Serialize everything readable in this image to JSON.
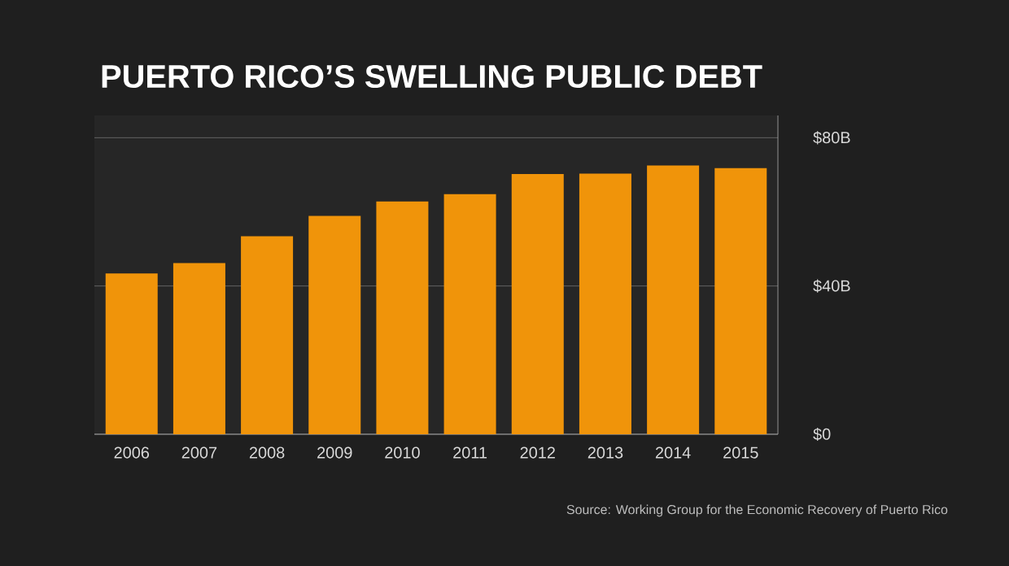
{
  "chart_data": {
    "type": "bar",
    "title": "PUERTO RICO’S SWELLING PUBLIC DEBT",
    "categories": [
      "2006",
      "2007",
      "2008",
      "2009",
      "2010",
      "2011",
      "2012",
      "2013",
      "2014",
      "2015"
    ],
    "values": [
      43.4,
      46.2,
      53.4,
      58.9,
      62.8,
      64.8,
      70.2,
      70.3,
      72.5,
      71.8
    ],
    "color": "#f0940a",
    "ylim": [
      0,
      86
    ],
    "yticks": [
      {
        "value": 0,
        "label": "$0"
      },
      {
        "value": 40,
        "label": "$40B"
      },
      {
        "value": 80,
        "label": "$80B"
      }
    ],
    "grid": "y",
    "annotations": [
      "Source: Working Group for the Economic Recovery of Puerto Rico"
    ]
  }
}
